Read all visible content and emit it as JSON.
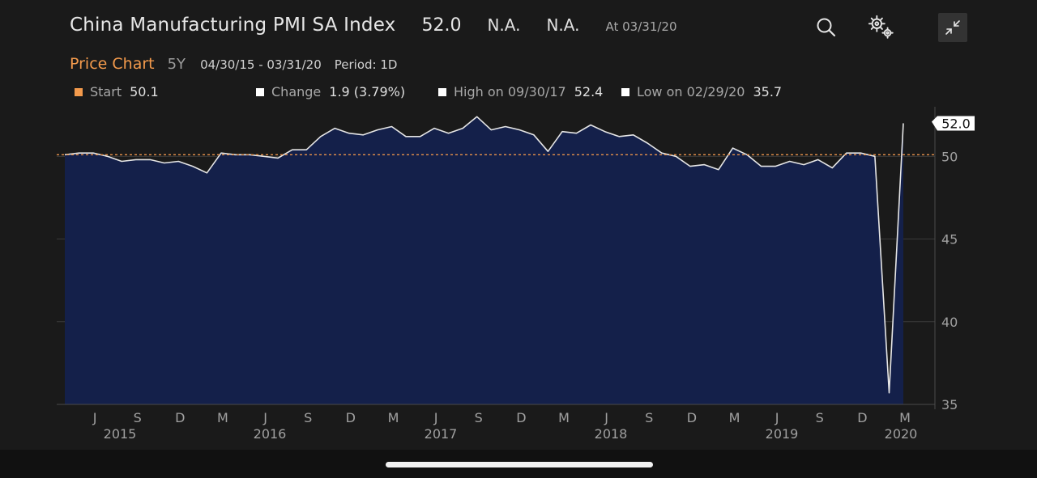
{
  "header": {
    "title": "China Manufacturing PMI SA Index",
    "price": "52.0",
    "na_1": "N.A.",
    "na_2": "N.A.",
    "as_of": "At 03/31/20"
  },
  "toolbar": {
    "search_icon": "search-icon",
    "settings_icon": "gear-icon",
    "collapse_icon": "collapse-icon"
  },
  "subheader": {
    "label": "Price Chart",
    "range": "5Y",
    "dates": "04/30/15 - 03/31/20",
    "period": "Period: 1D"
  },
  "legend": {
    "start_label": "Start",
    "start_value": "50.1",
    "change_label": "Change",
    "change_value": "1.9 (3.79%)",
    "high_label": "High on 09/30/17",
    "high_value": "52.4",
    "low_label": "Low on 02/29/20",
    "low_value": "35.7",
    "start_color": "#f39a4c",
    "marker_color": "#ffffff"
  },
  "chart_data": {
    "type": "area",
    "title": "China Manufacturing PMI SA Index",
    "y_ticks": [
      "35",
      "40",
      "45",
      "50"
    ],
    "ylim": [
      35,
      53
    ],
    "reference_line": 50.1,
    "last_value_label": "52.0",
    "month_ticks": [
      "J",
      "S",
      "D",
      "M",
      "J",
      "S",
      "D",
      "M",
      "J",
      "S",
      "D",
      "M",
      "J",
      "S",
      "D",
      "M",
      "J",
      "S",
      "D",
      "M"
    ],
    "year_labels": [
      "2015",
      "2016",
      "2017",
      "2018",
      "2019",
      "2020"
    ],
    "fill_color": "#14204a",
    "line_color": "#e6e6e6",
    "reference_color": "#e8924a",
    "x": [
      "2015-04",
      "2015-05",
      "2015-06",
      "2015-07",
      "2015-08",
      "2015-09",
      "2015-10",
      "2015-11",
      "2015-12",
      "2016-01",
      "2016-02",
      "2016-03",
      "2016-04",
      "2016-05",
      "2016-06",
      "2016-07",
      "2016-08",
      "2016-09",
      "2016-10",
      "2016-11",
      "2016-12",
      "2017-01",
      "2017-02",
      "2017-03",
      "2017-04",
      "2017-05",
      "2017-06",
      "2017-07",
      "2017-08",
      "2017-09",
      "2017-10",
      "2017-11",
      "2017-12",
      "2018-01",
      "2018-02",
      "2018-03",
      "2018-04",
      "2018-05",
      "2018-06",
      "2018-07",
      "2018-08",
      "2018-09",
      "2018-10",
      "2018-11",
      "2018-12",
      "2019-01",
      "2019-02",
      "2019-03",
      "2019-04",
      "2019-05",
      "2019-06",
      "2019-07",
      "2019-08",
      "2019-09",
      "2019-10",
      "2019-11",
      "2019-12",
      "2020-01",
      "2020-02",
      "2020-03"
    ],
    "values": [
      50.1,
      50.2,
      50.2,
      50.0,
      49.7,
      49.8,
      49.8,
      49.6,
      49.7,
      49.4,
      49.0,
      50.2,
      50.1,
      50.1,
      50.0,
      49.9,
      50.4,
      50.4,
      51.2,
      51.7,
      51.4,
      51.3,
      51.6,
      51.8,
      51.2,
      51.2,
      51.7,
      51.4,
      51.7,
      52.4,
      51.6,
      51.8,
      51.6,
      51.3,
      50.3,
      51.5,
      51.4,
      51.9,
      51.5,
      51.2,
      51.3,
      50.8,
      50.2,
      50.0,
      49.4,
      49.5,
      49.2,
      50.5,
      50.1,
      49.4,
      49.4,
      49.7,
      49.5,
      49.8,
      49.3,
      50.2,
      50.2,
      50.0,
      35.7,
      52.0
    ]
  }
}
